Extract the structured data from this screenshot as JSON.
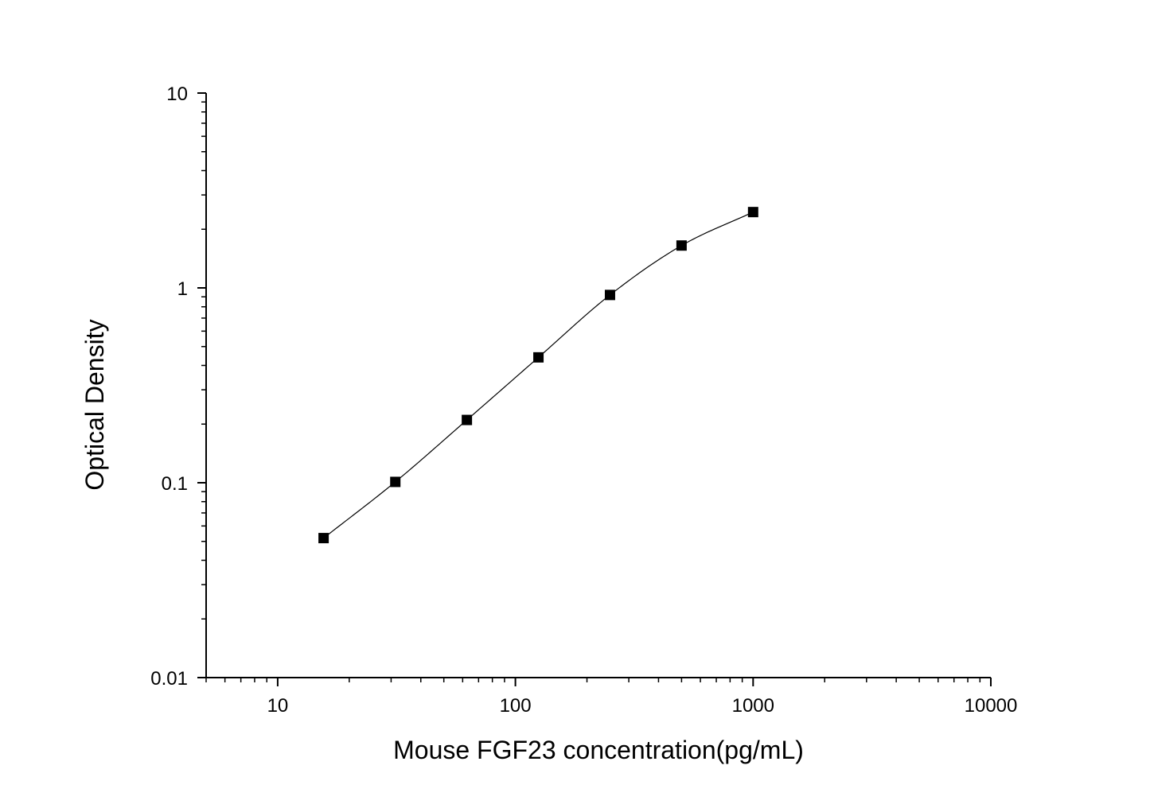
{
  "chart_data": {
    "type": "scatter",
    "title": "",
    "xlabel": "Mouse FGF23 concentration(pg/mL)",
    "ylabel": "Optical Density",
    "xscale": "log",
    "yscale": "log",
    "xlim": [
      5,
      10000
    ],
    "ylim": [
      0.01,
      10
    ],
    "x_ticks": [
      {
        "value": 10,
        "label": "10"
      },
      {
        "value": 100,
        "label": "100"
      },
      {
        "value": 1000,
        "label": "1000"
      },
      {
        "value": 10000,
        "label": "10000"
      }
    ],
    "y_ticks": [
      {
        "value": 0.01,
        "label": "0.01"
      },
      {
        "value": 0.1,
        "label": "0.1"
      },
      {
        "value": 1,
        "label": "1"
      },
      {
        "value": 10,
        "label": "10"
      }
    ],
    "grid": false,
    "legend": "none",
    "fit_curve": true,
    "marker": "square",
    "color": "#000000",
    "series": [
      {
        "x": [
          15.6,
          31.25,
          62.5,
          125,
          250,
          500,
          1000
        ],
        "y": [
          0.052,
          0.101,
          0.21,
          0.44,
          0.92,
          1.65,
          2.45
        ]
      }
    ]
  }
}
